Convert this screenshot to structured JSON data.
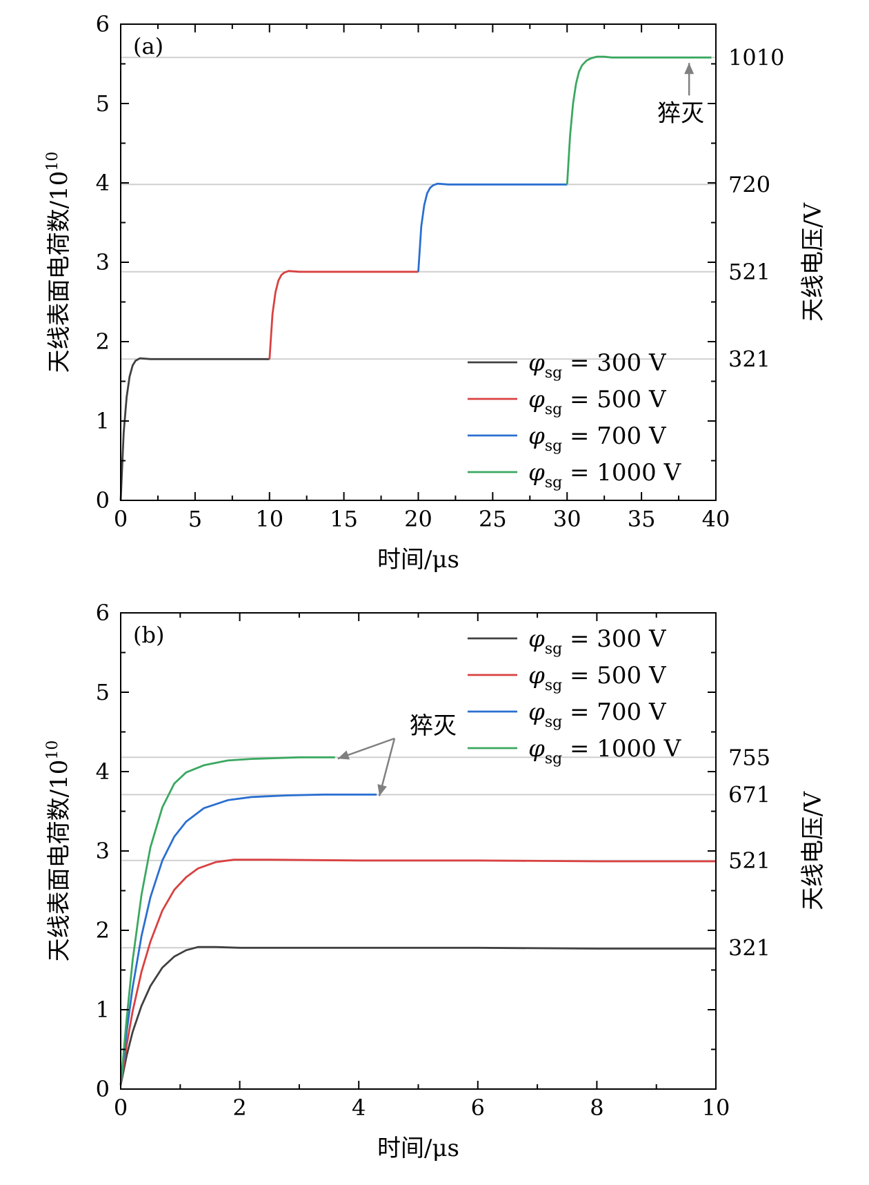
{
  "colors": {
    "300": "#404040",
    "500": "#d94040",
    "700": "#2a6fd0",
    "1000": "#3aa860",
    "ref_line": "#cfcfcf",
    "arrow": "#808080"
  },
  "chart_data": [
    {
      "type": "line",
      "panel_label": "(a)",
      "xlabel": "时间/μs",
      "ylabel": "天线表面电荷数/10",
      "ylabel_exp": "10",
      "ylabel_right": "天线电压/V",
      "xlim": [
        0,
        40
      ],
      "ylim": [
        0,
        6
      ],
      "xticks": [
        0,
        5,
        10,
        15,
        20,
        25,
        30,
        35,
        40
      ],
      "yticks": [
        0,
        1,
        2,
        3,
        4,
        5,
        6
      ],
      "grid": false,
      "legend_position": "lower-right",
      "legend": [
        {
          "symbol": "φ",
          "sub": "sg",
          "text": " = 300 V"
        },
        {
          "symbol": "φ",
          "sub": "sg",
          "text": " = 500 V"
        },
        {
          "symbol": "φ",
          "sub": "sg",
          "text": " = 700 V"
        },
        {
          "symbol": "φ",
          "sub": "sg",
          "text": " = 1000 V"
        }
      ],
      "ref_levels": [
        {
          "y": 1.78,
          "label": "321"
        },
        {
          "y": 2.88,
          "label": "521"
        },
        {
          "y": 3.98,
          "label": "720"
        },
        {
          "y": 5.58,
          "label": "1010"
        }
      ],
      "annotation": {
        "text": "猝灭",
        "x": 38.2,
        "y": 5.58
      },
      "series": [
        {
          "key": "300",
          "x": [
            0,
            0.2,
            0.4,
            0.6,
            0.8,
            1.0,
            1.3,
            2,
            4,
            6,
            8,
            10
          ],
          "y": [
            0,
            0.85,
            1.3,
            1.56,
            1.7,
            1.76,
            1.79,
            1.78,
            1.78,
            1.78,
            1.78,
            1.78
          ]
        },
        {
          "key": "500",
          "x": [
            10,
            10.2,
            10.4,
            10.6,
            10.8,
            11.0,
            11.3,
            12,
            14,
            16,
            18,
            20
          ],
          "y": [
            1.78,
            2.35,
            2.62,
            2.77,
            2.84,
            2.87,
            2.89,
            2.88,
            2.88,
            2.88,
            2.88,
            2.88
          ]
        },
        {
          "key": "700",
          "x": [
            20,
            20.2,
            20.4,
            20.6,
            20.8,
            21.0,
            21.3,
            22,
            24,
            26,
            28,
            30
          ],
          "y": [
            2.88,
            3.45,
            3.72,
            3.87,
            3.94,
            3.97,
            3.99,
            3.98,
            3.98,
            3.98,
            3.98,
            3.98
          ]
        },
        {
          "key": "1000",
          "x": [
            30,
            30.2,
            30.4,
            30.6,
            30.8,
            31.0,
            31.3,
            31.6,
            32.0,
            32.5,
            33,
            36,
            39.7
          ],
          "y": [
            3.98,
            4.6,
            5.0,
            5.25,
            5.4,
            5.48,
            5.54,
            5.57,
            5.59,
            5.59,
            5.58,
            5.58,
            5.58
          ]
        }
      ]
    },
    {
      "type": "line",
      "panel_label": "(b)",
      "xlabel": "时间/μs",
      "ylabel": "天线表面电荷数/10",
      "ylabel_exp": "10",
      "ylabel_right": "天线电压/V",
      "xlim": [
        0,
        10
      ],
      "ylim": [
        0,
        6
      ],
      "xticks": [
        0,
        2,
        4,
        6,
        8,
        10
      ],
      "yticks": [
        0,
        1,
        2,
        3,
        4,
        5,
        6
      ],
      "grid": false,
      "legend_position": "top-right",
      "legend": [
        {
          "symbol": "φ",
          "sub": "sg",
          "text": " = 300 V"
        },
        {
          "symbol": "φ",
          "sub": "sg",
          "text": " = 500 V"
        },
        {
          "symbol": "φ",
          "sub": "sg",
          "text": " = 700 V"
        },
        {
          "symbol": "φ",
          "sub": "sg",
          "text": " = 1000 V"
        }
      ],
      "ref_levels": [
        {
          "y": 1.78,
          "label": "321"
        },
        {
          "y": 2.88,
          "label": "521"
        },
        {
          "y": 3.71,
          "label": "671"
        },
        {
          "y": 4.18,
          "label": "755"
        }
      ],
      "annotation": {
        "text": "猝灭",
        "targets": [
          {
            "x": 3.6,
            "y": 4.18
          },
          {
            "x": 4.3,
            "y": 3.71
          }
        ]
      },
      "series": [
        {
          "key": "300",
          "x": [
            0,
            0.1,
            0.2,
            0.35,
            0.5,
            0.7,
            0.9,
            1.1,
            1.3,
            1.6,
            2,
            4,
            6,
            8,
            10
          ],
          "y": [
            0.05,
            0.42,
            0.72,
            1.05,
            1.3,
            1.53,
            1.67,
            1.75,
            1.79,
            1.79,
            1.78,
            1.78,
            1.78,
            1.77,
            1.77
          ]
        },
        {
          "key": "500",
          "x": [
            0,
            0.1,
            0.2,
            0.35,
            0.5,
            0.7,
            0.9,
            1.1,
            1.3,
            1.6,
            1.9,
            2.5,
            4,
            6,
            8,
            10
          ],
          "y": [
            0.05,
            0.55,
            0.98,
            1.48,
            1.86,
            2.25,
            2.51,
            2.67,
            2.78,
            2.86,
            2.89,
            2.89,
            2.88,
            2.88,
            2.87,
            2.87
          ]
        },
        {
          "key": "700",
          "x": [
            0,
            0.1,
            0.2,
            0.35,
            0.5,
            0.7,
            0.9,
            1.1,
            1.4,
            1.8,
            2.2,
            2.8,
            3.4,
            4.3
          ],
          "y": [
            0.05,
            0.72,
            1.28,
            1.93,
            2.42,
            2.88,
            3.18,
            3.37,
            3.54,
            3.64,
            3.68,
            3.7,
            3.71,
            3.71
          ]
        },
        {
          "key": "1000",
          "x": [
            0,
            0.1,
            0.2,
            0.35,
            0.5,
            0.7,
            0.9,
            1.1,
            1.4,
            1.8,
            2.2,
            2.6,
            3.0,
            3.6
          ],
          "y": [
            0.05,
            0.88,
            1.62,
            2.45,
            3.05,
            3.55,
            3.85,
            3.99,
            4.08,
            4.14,
            4.16,
            4.17,
            4.18,
            4.18
          ]
        }
      ]
    }
  ]
}
